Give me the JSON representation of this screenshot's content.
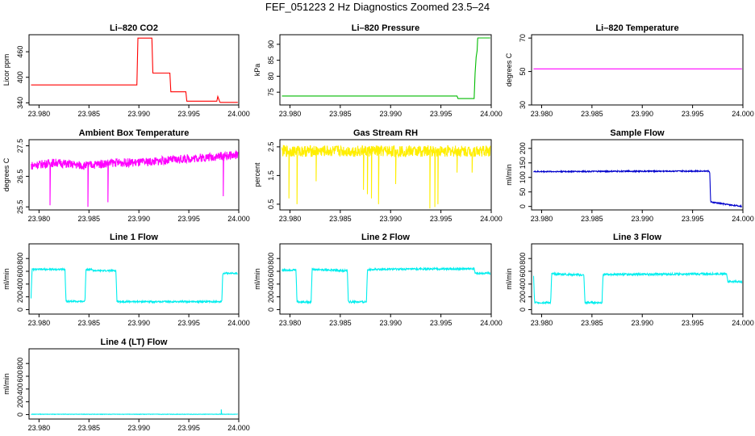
{
  "page_title": "FEF_051223  2 Hz Diagnostics Zoomed 23.5–24",
  "colors": {
    "red": "#ff0000",
    "green": "#00bb00",
    "magenta": "#ff00ff",
    "yellow": "#ffee00",
    "blue": "#0000cc",
    "cyan": "#00eeee",
    "axis": "#000000"
  },
  "chart_data": [
    {
      "type": "line",
      "id": "co2",
      "title": "Li–820 CO2",
      "xlabel": "",
      "ylabel": "Licor ppm",
      "xlim": [
        23.979,
        24.0
      ],
      "ylim": [
        335,
        500
      ],
      "xticks": [
        23.98,
        23.985,
        23.99,
        23.995,
        24.0
      ],
      "xtick_labels": [
        "23.980",
        "23.985",
        "23.990",
        "23.995",
        "24.000"
      ],
      "yticks": [
        340,
        400,
        460
      ],
      "ytick_labels": [
        "340",
        "400",
        "460"
      ],
      "series": [
        {
          "name": "CO2",
          "color": "red",
          "x": [
            23.9792,
            23.9898,
            23.9899,
            23.9913,
            23.9914,
            23.9931,
            23.9932,
            23.9947,
            23.9948,
            23.9978,
            23.9979,
            23.9981,
            23.99815,
            23.9999
          ],
          "y": [
            382,
            382,
            492,
            492,
            410,
            410,
            366,
            366,
            344,
            344,
            355,
            342,
            341,
            341
          ]
        }
      ]
    },
    {
      "type": "line",
      "id": "pressure",
      "title": "Li–820 Pressure",
      "xlabel": "",
      "ylabel": "kPa",
      "xlim": [
        23.979,
        24.0
      ],
      "ylim": [
        71,
        93
      ],
      "xticks": [
        23.98,
        23.985,
        23.99,
        23.995,
        24.0
      ],
      "xtick_labels": [
        "23.980",
        "23.985",
        "23.990",
        "23.995",
        "24.000"
      ],
      "yticks": [
        75,
        80,
        85,
        90
      ],
      "ytick_labels": [
        "75",
        "80",
        "85",
        "90"
      ],
      "series": [
        {
          "name": "Pressure",
          "color": "green",
          "x": [
            23.9792,
            23.9966,
            23.9967,
            23.9983,
            23.9984,
            23.9985,
            23.9986,
            23.99865,
            23.99867,
            23.9999
          ],
          "y": [
            73.8,
            73.8,
            73.0,
            73.0,
            81,
            86,
            88,
            91.8,
            92,
            92
          ]
        }
      ]
    },
    {
      "type": "line",
      "id": "licor_temp",
      "title": "Li–820 Temperature",
      "xlabel": "",
      "ylabel": "degrees C",
      "xlim": [
        23.979,
        24.0
      ],
      "ylim": [
        30,
        72
      ],
      "xticks": [
        23.98,
        23.985,
        23.99,
        23.995,
        24.0
      ],
      "xtick_labels": [
        "23.980",
        "23.985",
        "23.990",
        "23.995",
        "24.000"
      ],
      "yticks": [
        30,
        50,
        70
      ],
      "ytick_labels": [
        "30",
        "50",
        "70"
      ],
      "series": [
        {
          "name": "Temperature",
          "color": "magenta",
          "x": [
            23.9792,
            23.9999
          ],
          "y": [
            51.6,
            51.6
          ]
        }
      ]
    },
    {
      "type": "line",
      "id": "box_temp",
      "title": "Ambient Box Temperature",
      "xlabel": "",
      "ylabel": "degrees C",
      "xlim": [
        23.979,
        24.0
      ],
      "ylim": [
        25.4,
        27.7
      ],
      "xticks": [
        23.98,
        23.985,
        23.99,
        23.995,
        24.0
      ],
      "xtick_labels": [
        "23.980",
        "23.985",
        "23.990",
        "23.995",
        "24.000"
      ],
      "yticks": [
        25.5,
        26.5,
        27.5
      ],
      "ytick_labels": [
        "25.5",
        "26.5",
        "27.5"
      ],
      "noisy": true,
      "amplitude": 0.14,
      "series": [
        {
          "name": "Box Temp",
          "color": "magenta",
          "x": [
            23.9792,
            23.9815,
            23.9845,
            23.9875,
            23.99,
            23.995,
            23.9999
          ],
          "y": [
            26.85,
            26.95,
            26.85,
            26.95,
            26.95,
            27.08,
            27.2
          ]
        }
      ],
      "spikes": [
        [
          23.9811,
          25.55
        ],
        [
          23.9849,
          25.5
        ],
        [
          23.9869,
          25.65
        ],
        [
          23.99845,
          25.85
        ]
      ]
    },
    {
      "type": "line",
      "id": "rh",
      "title": "Gas Stream RH",
      "xlabel": "",
      "ylabel": "percent",
      "xlim": [
        23.979,
        24.0
      ],
      "ylim": [
        0.3,
        2.75
      ],
      "xticks": [
        23.98,
        23.985,
        23.99,
        23.995,
        24.0
      ],
      "xtick_labels": [
        "23.980",
        "23.985",
        "23.990",
        "23.995",
        "24.000"
      ],
      "yticks": [
        0.5,
        1.5,
        2.5
      ],
      "ytick_labels": [
        "0.5",
        "1.5",
        "2.5"
      ],
      "noisy": true,
      "amplitude": 0.2,
      "series": [
        {
          "name": "RH",
          "color": "yellow",
          "x": [
            23.9792,
            23.9999
          ],
          "y": [
            2.35,
            2.35
          ]
        }
      ],
      "spikes": [
        [
          23.9799,
          0.7
        ],
        [
          23.9807,
          0.5
        ],
        [
          23.9826,
          1.3
        ],
        [
          23.9873,
          1.0
        ],
        [
          23.9877,
          0.85
        ],
        [
          23.9881,
          0.7
        ],
        [
          23.9888,
          0.5
        ],
        [
          23.9905,
          1.2
        ],
        [
          23.9939,
          0.35
        ],
        [
          23.9944,
          0.4
        ],
        [
          23.9947,
          0.5
        ],
        [
          23.9966,
          1.6
        ],
        [
          23.9981,
          1.6
        ]
      ]
    },
    {
      "type": "line",
      "id": "sample_flow",
      "title": "Sample Flow",
      "xlabel": "",
      "ylabel": "ml/min",
      "xlim": [
        23.979,
        24.0
      ],
      "ylim": [
        -12,
        230
      ],
      "xticks": [
        23.98,
        23.985,
        23.99,
        23.995,
        24.0
      ],
      "xtick_labels": [
        "23.980",
        "23.985",
        "23.990",
        "23.995",
        "24.000"
      ],
      "yticks": [
        0,
        50,
        100,
        150,
        200
      ],
      "ytick_labels": [
        "0",
        "50",
        "100",
        "150",
        "200"
      ],
      "noisy": true,
      "amplitude": 2,
      "series": [
        {
          "name": "Sample Flow",
          "color": "blue",
          "x": [
            23.9792,
            23.9966,
            23.9967,
            23.9968,
            23.9999
          ],
          "y": [
            120,
            122,
            120,
            15,
            0
          ]
        }
      ]
    },
    {
      "type": "line",
      "id": "line1",
      "title": "Line 1 Flow",
      "xlabel": "",
      "ylabel": "ml/min",
      "xlim": [
        23.979,
        24.0
      ],
      "ylim": [
        -70,
        1030
      ],
      "xticks": [
        23.98,
        23.985,
        23.99,
        23.995,
        24.0
      ],
      "xtick_labels": [
        "23.980",
        "23.985",
        "23.990",
        "23.995",
        "24.000"
      ],
      "yticks": [
        0,
        200,
        400,
        600,
        800
      ],
      "ytick_labels": [
        "0",
        "200",
        "400",
        "600",
        "800"
      ],
      "noisy": true,
      "amplitude": 12,
      "series": [
        {
          "name": "Line 1",
          "color": "cyan",
          "x": [
            23.9792,
            23.9793,
            23.9826,
            23.9827,
            23.9846,
            23.9847,
            23.9853,
            23.9854,
            23.9877,
            23.9878,
            23.9983,
            23.9984,
            23.9999
          ],
          "y": [
            180,
            630,
            630,
            130,
            130,
            630,
            630,
            610,
            610,
            125,
            125,
            570,
            570
          ]
        }
      ]
    },
    {
      "type": "line",
      "id": "line2",
      "title": "Line 2 Flow",
      "xlabel": "",
      "ylabel": "ml/min",
      "xlim": [
        23.979,
        24.0
      ],
      "ylim": [
        -70,
        1030
      ],
      "xticks": [
        23.98,
        23.985,
        23.99,
        23.995,
        24.0
      ],
      "xtick_labels": [
        "23.980",
        "23.985",
        "23.990",
        "23.995",
        "24.000"
      ],
      "yticks": [
        0,
        200,
        400,
        600,
        800
      ],
      "ytick_labels": [
        "0",
        "200",
        "400",
        "600",
        "800"
      ],
      "noisy": true,
      "amplitude": 15,
      "series": [
        {
          "name": "Line 2",
          "color": "cyan",
          "x": [
            23.9792,
            23.9806,
            23.9807,
            23.9821,
            23.9822,
            23.9857,
            23.9858,
            23.9876,
            23.9877,
            23.9983,
            23.9984,
            23.9999
          ],
          "y": [
            620,
            620,
            120,
            120,
            630,
            610,
            120,
            120,
            630,
            640,
            570,
            570
          ]
        }
      ]
    },
    {
      "type": "line",
      "id": "line3",
      "title": "Line 3 Flow",
      "xlabel": "",
      "ylabel": "ml/min",
      "xlim": [
        23.979,
        24.0
      ],
      "ylim": [
        -70,
        1030
      ],
      "xticks": [
        23.98,
        23.985,
        23.99,
        23.995,
        24.0
      ],
      "xtick_labels": [
        "23.980",
        "23.985",
        "23.990",
        "23.995",
        "24.000"
      ],
      "yticks": [
        0,
        200,
        400,
        600,
        800
      ],
      "ytick_labels": [
        "0",
        "200",
        "400",
        "600",
        "800"
      ],
      "noisy": true,
      "amplitude": 15,
      "series": [
        {
          "name": "Line 3",
          "color": "cyan",
          "x": [
            23.9792,
            23.9793,
            23.9809,
            23.981,
            23.9842,
            23.9843,
            23.986,
            23.9861,
            23.9984,
            23.9985,
            23.9999
          ],
          "y": [
            520,
            110,
            110,
            560,
            540,
            110,
            110,
            550,
            560,
            440,
            440
          ]
        }
      ]
    },
    {
      "type": "line",
      "id": "line4",
      "title": "Line 4 (LT) Flow",
      "xlabel": "",
      "ylabel": "ml/min",
      "xlim": [
        23.979,
        24.0
      ],
      "ylim": [
        -70,
        1030
      ],
      "xticks": [
        23.98,
        23.985,
        23.99,
        23.995,
        24.0
      ],
      "xtick_labels": [
        "23.980",
        "23.985",
        "23.990",
        "23.995",
        "24.000"
      ],
      "yticks": [
        0,
        200,
        400,
        600,
        800
      ],
      "ytick_labels": [
        "0",
        "200",
        "400",
        "600",
        "800"
      ],
      "noisy": true,
      "amplitude": 3,
      "series": [
        {
          "name": "Line 4",
          "color": "cyan",
          "x": [
            23.9792,
            23.9983,
            23.9999
          ],
          "y": [
            5,
            5,
            5
          ]
        }
      ],
      "spikes": [
        [
          23.99825,
          80
        ]
      ]
    }
  ]
}
